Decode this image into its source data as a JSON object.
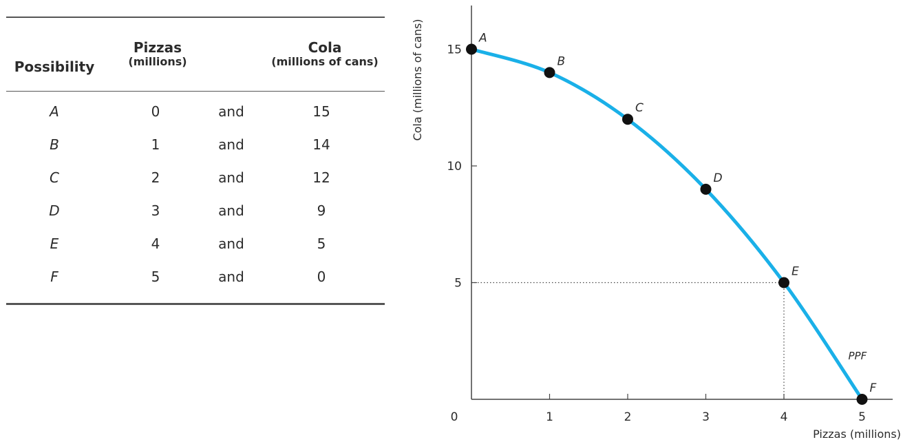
{
  "table": {
    "headers": {
      "possibility": "Possibility",
      "pizzas": "Pizzas",
      "pizzas_unit": "(millions)",
      "cola": "Cola",
      "cola_unit": "(millions of cans)"
    },
    "rows": [
      {
        "possibility": "A",
        "pizzas": "0",
        "and": "and",
        "cola": "15"
      },
      {
        "possibility": "B",
        "pizzas": "1",
        "and": "and",
        "cola": "14"
      },
      {
        "possibility": "C",
        "pizzas": "2",
        "and": "and",
        "cola": "12"
      },
      {
        "possibility": "D",
        "pizzas": "3",
        "and": "and",
        "cola": "9"
      },
      {
        "possibility": "E",
        "pizzas": "4",
        "and": "and",
        "cola": "5"
      },
      {
        "possibility": "F",
        "pizzas": "5",
        "and": "and",
        "cola": "0"
      }
    ]
  },
  "chart_data": {
    "type": "line",
    "xlabel": "Pizzas (millions)",
    "ylabel": "Cola (millions of cans)",
    "xlim": [
      0,
      5
    ],
    "ylim": [
      0,
      16.5
    ],
    "x_ticks": [
      "0",
      "1",
      "2",
      "3",
      "4",
      "5"
    ],
    "y_ticks": [
      "5",
      "10",
      "15"
    ],
    "grid": false,
    "curve_label": "PPF",
    "curve_color": "#1ab0e8",
    "points": [
      {
        "label": "A",
        "x": 0,
        "y": 15
      },
      {
        "label": "B",
        "x": 1,
        "y": 14
      },
      {
        "label": "C",
        "x": 2,
        "y": 12
      },
      {
        "label": "D",
        "x": 3,
        "y": 9
      },
      {
        "label": "E",
        "x": 4,
        "y": 5
      },
      {
        "label": "F",
        "x": 5,
        "y": 0
      }
    ],
    "guide_lines": [
      {
        "x": 4,
        "y": 5,
        "style": "dotted"
      }
    ]
  }
}
